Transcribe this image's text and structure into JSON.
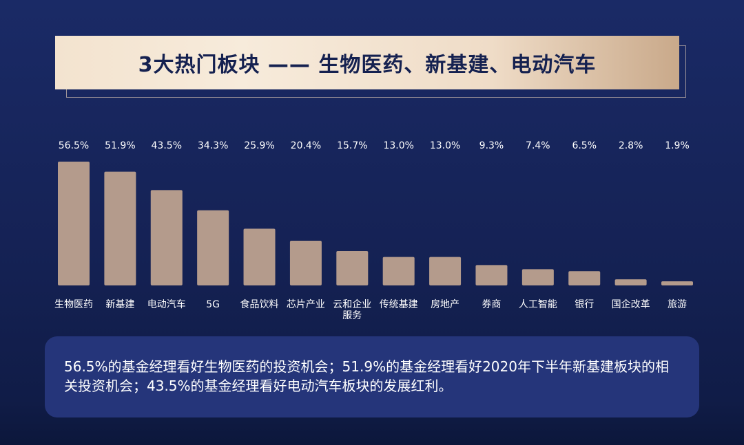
{
  "title": "3大热门板块 —— 生物医药、新基建、电动汽车",
  "chart_data": {
    "type": "bar",
    "categories": [
      "生物医药",
      "新基建",
      "电动汽车",
      "5G",
      "食品饮料",
      "芯片产业",
      "云和企业服务",
      "传统基建",
      "房地产",
      "券商",
      "人工智能",
      "银行",
      "国企改革",
      "旅游"
    ],
    "values": [
      56.5,
      51.9,
      43.5,
      34.3,
      25.9,
      20.4,
      15.7,
      13.0,
      13.0,
      9.3,
      7.4,
      6.5,
      2.8,
      1.9
    ],
    "value_labels": [
      "56.5%",
      "51.9%",
      "43.5%",
      "34.3%",
      "25.9%",
      "20.4%",
      "15.7%",
      "13.0%",
      "13.0%",
      "9.3%",
      "7.4%",
      "6.5%",
      "2.8%",
      "1.9%"
    ],
    "unit": "%",
    "ylim": [
      0,
      56.5
    ],
    "grid": false,
    "bar_color": "#b49b8c",
    "label_color": "#ffffff"
  },
  "summary": {
    "text": "56.5%的基金经理看好生物医药的投资机会；51.9%的基金经理看好2020年下半年新基建板块的相关投资机会；43.5%的基金经理看好电动汽车板块的发展红利。"
  }
}
